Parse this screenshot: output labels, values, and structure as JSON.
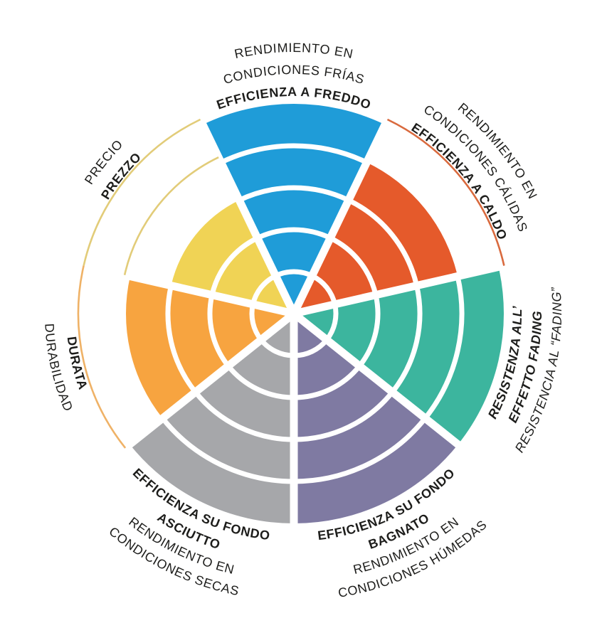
{
  "page": {
    "background": "#ffffff"
  },
  "chart_data": {
    "type": "polar-wheel",
    "max_level": 5,
    "grid": "concentric-rings-5",
    "legend": "none",
    "segments": [
      {
        "id": "freddo",
        "value": 5,
        "color": "#1f9cd8",
        "tick_color": "#1f9cd8",
        "lines": [
          {
            "text": "RENDIMIENTO EN",
            "weight": "regular"
          },
          {
            "text": "CONDICIONES FRÍAS",
            "weight": "regular"
          },
          {
            "text": "EFFICIENZA A FREDDO",
            "weight": "bold"
          }
        ]
      },
      {
        "id": "caldo",
        "value": 4,
        "color": "#e55a2b",
        "tick_color": "#d96a3e",
        "lines": [
          {
            "text": "RENDIMIENTO EN",
            "weight": "regular"
          },
          {
            "text": "CONDICIONES CÁLIDAS",
            "weight": "regular"
          },
          {
            "text": "EFFICIENZA A CALDO",
            "weight": "bold"
          }
        ]
      },
      {
        "id": "fading",
        "value": 5,
        "color": "#3cb59e",
        "tick_color": "#3cb59e",
        "lines": [
          {
            "text": "RESISTENZA ALL’",
            "weight": "bold"
          },
          {
            "text": "EFFETTO FADING",
            "weight": "bold"
          },
          {
            "text": "RESISTENCIA AL “FADING”",
            "weight": "regular"
          }
        ]
      },
      {
        "id": "bagnato",
        "value": 5,
        "color": "#7f7aa2",
        "tick_color": "#7f7aa2",
        "lines": [
          {
            "text": "EFFICIENZA SU FONDO",
            "weight": "bold"
          },
          {
            "text": "BAGNATO",
            "weight": "bold"
          },
          {
            "text": "RENDIMIENTO EN",
            "weight": "regular"
          },
          {
            "text": "CONDICIONES HÚMEDAS",
            "weight": "regular"
          }
        ]
      },
      {
        "id": "asciutto",
        "value": 5,
        "color": "#a6a7aa",
        "tick_color": "#a6a7aa",
        "lines": [
          {
            "text": "EFFICIENZA SU FONDO",
            "weight": "bold"
          },
          {
            "text": "ASCIUTTO",
            "weight": "bold"
          },
          {
            "text": "RENDIMIENTO EN",
            "weight": "regular"
          },
          {
            "text": "CONDICIONES SECAS",
            "weight": "regular"
          }
        ]
      },
      {
        "id": "durata",
        "value": 4,
        "color": "#f7a440",
        "tick_color": "#efb267",
        "lines": [
          {
            "text": "DURATA",
            "weight": "bold"
          },
          {
            "text": "DURABILIDAD",
            "weight": "regular"
          }
        ]
      },
      {
        "id": "prezzo",
        "value": 3,
        "color": "#f0d355",
        "tick_color": "#e2cc79",
        "lines": [
          {
            "text": "PRECIO",
            "weight": "regular"
          },
          {
            "text": "PREZZO",
            "weight": "bold"
          }
        ]
      }
    ]
  }
}
